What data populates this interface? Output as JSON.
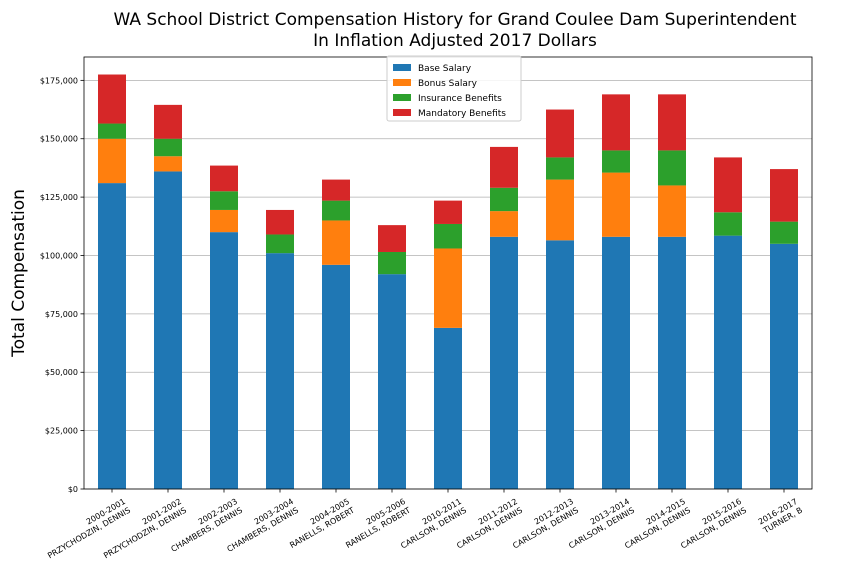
{
  "chart_data": {
    "type": "bar",
    "stacked": true,
    "title": "WA School District Compensation History for Grand Coulee Dam Superintendent",
    "subtitle": "In Inflation Adjusted 2017 Dollars",
    "xlabel": "",
    "ylabel": "Total Compensation",
    "ylim": [
      0,
      185000
    ],
    "yticks": [
      "$0",
      "$25,000",
      "$50,000",
      "$75,000",
      "$100,000",
      "$125,000",
      "$150,000",
      "$175,000"
    ],
    "ytick_values": [
      0,
      25000,
      50000,
      75000,
      100000,
      125000,
      150000,
      175000
    ],
    "grid": "horizontal",
    "legend_position": "top-center",
    "categories": [
      [
        "2000-2001",
        "PRZYCHODZIN, DENNIS"
      ],
      [
        "2001-2002",
        "PRZYCHODZIN, DENNIS"
      ],
      [
        "2002-2003",
        "CHAMBERS, DENNIS"
      ],
      [
        "2003-2004",
        "CHAMBERS, DENNIS"
      ],
      [
        "2004-2005",
        "RANELLS, ROBERT"
      ],
      [
        "2005-2006",
        "RANELLS, ROBERT"
      ],
      [
        "2010-2011",
        "CARLSON, DENNIS"
      ],
      [
        "2011-2012",
        "CARLSON, DENNIS"
      ],
      [
        "2012-2013",
        "CARLSON, DENNIS"
      ],
      [
        "2013-2014",
        "CARLSON, DENNIS"
      ],
      [
        "2014-2015",
        "CARLSON, DENNIS"
      ],
      [
        "2015-2016",
        "CARLSON, DENNIS"
      ],
      [
        "2016-2017",
        "TURNER, B"
      ]
    ],
    "series": [
      {
        "name": "Base Salary",
        "color": "#1f77b4",
        "values": [
          131000,
          136000,
          110000,
          101000,
          96000,
          92000,
          69000,
          108000,
          106500,
          108000,
          108000,
          108500,
          105000
        ]
      },
      {
        "name": "Bonus Salary",
        "color": "#ff7f0e",
        "values": [
          19000,
          6500,
          9500,
          0,
          19000,
          0,
          34000,
          11000,
          26000,
          27500,
          22000,
          0,
          0
        ]
      },
      {
        "name": "Insurance Benefits",
        "color": "#2ca02c",
        "values": [
          6500,
          7500,
          8000,
          8000,
          8500,
          9500,
          10500,
          10000,
          9500,
          9500,
          15000,
          10000,
          9500
        ]
      },
      {
        "name": "Mandatory Benefits",
        "color": "#d62728",
        "values": [
          21000,
          14500,
          11000,
          10500,
          9000,
          11500,
          10000,
          17500,
          20500,
          24000,
          24000,
          23500,
          22500
        ]
      }
    ]
  }
}
